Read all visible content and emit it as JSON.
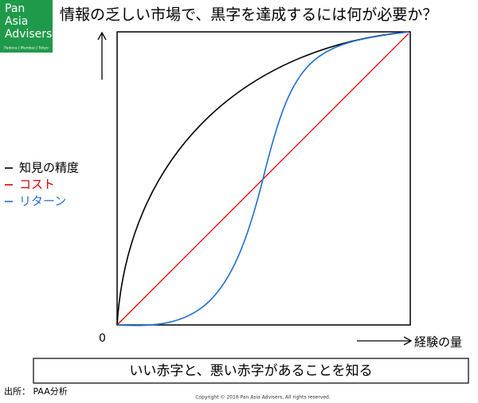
{
  "logo": {
    "lines": [
      "Pan",
      "Asia",
      "Advisers"
    ],
    "offices": "Padova | Mumbai | Tokyo"
  },
  "title": "情報の乏しい市場で、黒字を達成するには何が必要か？",
  "legend": [
    {
      "label": "知見の精度",
      "color": "#000000"
    },
    {
      "label": "コスト",
      "color": "#e00000"
    },
    {
      "label": "リターン",
      "color": "#1f6fd0"
    }
  ],
  "origin_label": "0",
  "x_axis_label": "経験の量",
  "caption": "いい赤字と、悪い赤字があることを知る",
  "source": "出所：  PAA分析",
  "copyright": "Copyright © 2016 Pan Asia Advisers, All rights reserved."
}
